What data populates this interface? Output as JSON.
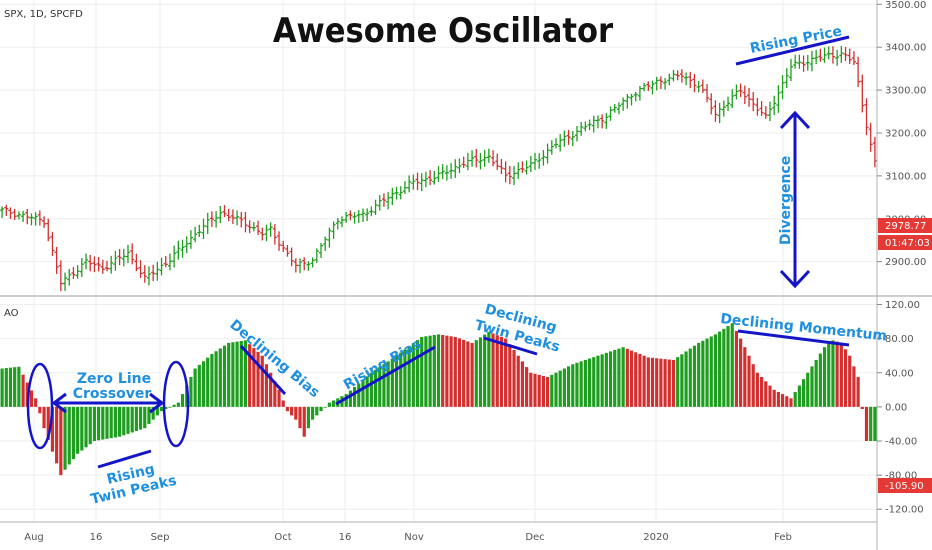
{
  "chart_data": {
    "type": "ohlc+histogram",
    "title": "Awesome Oscillator",
    "symbol_label": "SPX, 1D, SPCFD",
    "indicator_label": "AO",
    "price_axis": {
      "range": [
        2820,
        3510
      ],
      "ticks": [
        "3500.00",
        "3400.00",
        "3300.00",
        "3200.00",
        "3100.00",
        "3000.00",
        "2900.00"
      ]
    },
    "ao_axis": {
      "range": [
        -135,
        130
      ],
      "ticks": [
        "120.00",
        "80.00",
        "40.00",
        "0.00",
        "-40.00",
        "-80.00",
        "-120.00"
      ]
    },
    "price_tags": {
      "last": "2978.77",
      "countdown": "01:47:03",
      "ao_last": "-105.90",
      "up_color": "#26a69a",
      "down_color": "#e53935"
    },
    "x_labels": [
      "Aug",
      "16",
      "Sep",
      "Oct",
      "16",
      "Nov",
      "Dec",
      "2020",
      "Feb"
    ],
    "colors": {
      "up": "#1e9e1e",
      "down": "#d32f2f",
      "annotation_text": "#1f8fe0",
      "annotation_line": "#1414c8"
    },
    "price_anchors": [
      [
        0,
        3020
      ],
      [
        10,
        2995
      ],
      [
        14,
        2850
      ],
      [
        20,
        2900
      ],
      [
        24,
        2885
      ],
      [
        30,
        2920
      ],
      [
        34,
        2860
      ],
      [
        40,
        2905
      ],
      [
        46,
        2965
      ],
      [
        52,
        3015
      ],
      [
        58,
        2990
      ],
      [
        62,
        2965
      ],
      [
        64,
        2975
      ],
      [
        66,
        2945
      ],
      [
        70,
        2890
      ],
      [
        74,
        2905
      ],
      [
        80,
        3000
      ],
      [
        86,
        3010
      ],
      [
        92,
        3050
      ],
      [
        98,
        3085
      ],
      [
        104,
        3100
      ],
      [
        110,
        3130
      ],
      [
        116,
        3145
      ],
      [
        120,
        3100
      ],
      [
        126,
        3125
      ],
      [
        132,
        3175
      ],
      [
        138,
        3210
      ],
      [
        144,
        3240
      ],
      [
        150,
        3290
      ],
      [
        156,
        3320
      ],
      [
        162,
        3335
      ],
      [
        166,
        3310
      ],
      [
        170,
        3245
      ],
      [
        176,
        3300
      ],
      [
        182,
        3235
      ],
      [
        188,
        3355
      ],
      [
        194,
        3375
      ],
      [
        200,
        3385
      ],
      [
        203,
        3365
      ],
      [
        205,
        3265
      ],
      [
        208,
        3130
      ]
    ],
    "ao_anchors": [
      [
        0,
        45
      ],
      [
        4,
        47
      ],
      [
        8,
        10
      ],
      [
        10,
        -25
      ],
      [
        14,
        -80
      ],
      [
        18,
        -55
      ],
      [
        22,
        -40
      ],
      [
        28,
        -35
      ],
      [
        34,
        -25
      ],
      [
        38,
        -5
      ],
      [
        42,
        5
      ],
      [
        46,
        45
      ],
      [
        50,
        62
      ],
      [
        54,
        75
      ],
      [
        58,
        78
      ],
      [
        62,
        60
      ],
      [
        66,
        20
      ],
      [
        68,
        -5
      ],
      [
        70,
        -15
      ],
      [
        72,
        -35
      ],
      [
        74,
        -15
      ],
      [
        76,
        -5
      ],
      [
        78,
        5
      ],
      [
        82,
        15
      ],
      [
        88,
        40
      ],
      [
        94,
        60
      ],
      [
        100,
        82
      ],
      [
        104,
        85
      ],
      [
        108,
        82
      ],
      [
        112,
        75
      ],
      [
        116,
        88
      ],
      [
        120,
        80
      ],
      [
        126,
        40
      ],
      [
        130,
        35
      ],
      [
        136,
        50
      ],
      [
        142,
        60
      ],
      [
        148,
        70
      ],
      [
        154,
        58
      ],
      [
        160,
        55
      ],
      [
        166,
        75
      ],
      [
        170,
        85
      ],
      [
        174,
        98
      ],
      [
        176,
        80
      ],
      [
        180,
        40
      ],
      [
        184,
        20
      ],
      [
        188,
        10
      ],
      [
        192,
        40
      ],
      [
        196,
        70
      ],
      [
        198,
        78
      ],
      [
        200,
        75
      ],
      [
        202,
        60
      ],
      [
        204,
        35
      ],
      [
        206,
        -40
      ]
    ]
  },
  "annotations": {
    "rising_price": "Rising Price",
    "divergence": "Divergence",
    "zero_line_1": "Zero Line",
    "zero_line_2": "Crossover",
    "rising_twin_1": "Rising",
    "rising_twin_2": "Twin Peaks",
    "declining_bias": "Declining  Bias",
    "rising_bias": "Rising Bias",
    "declining_twin_1": "Declining",
    "declining_twin_2": "Twin Peaks",
    "declining_momentum": "Declining Momentum"
  }
}
